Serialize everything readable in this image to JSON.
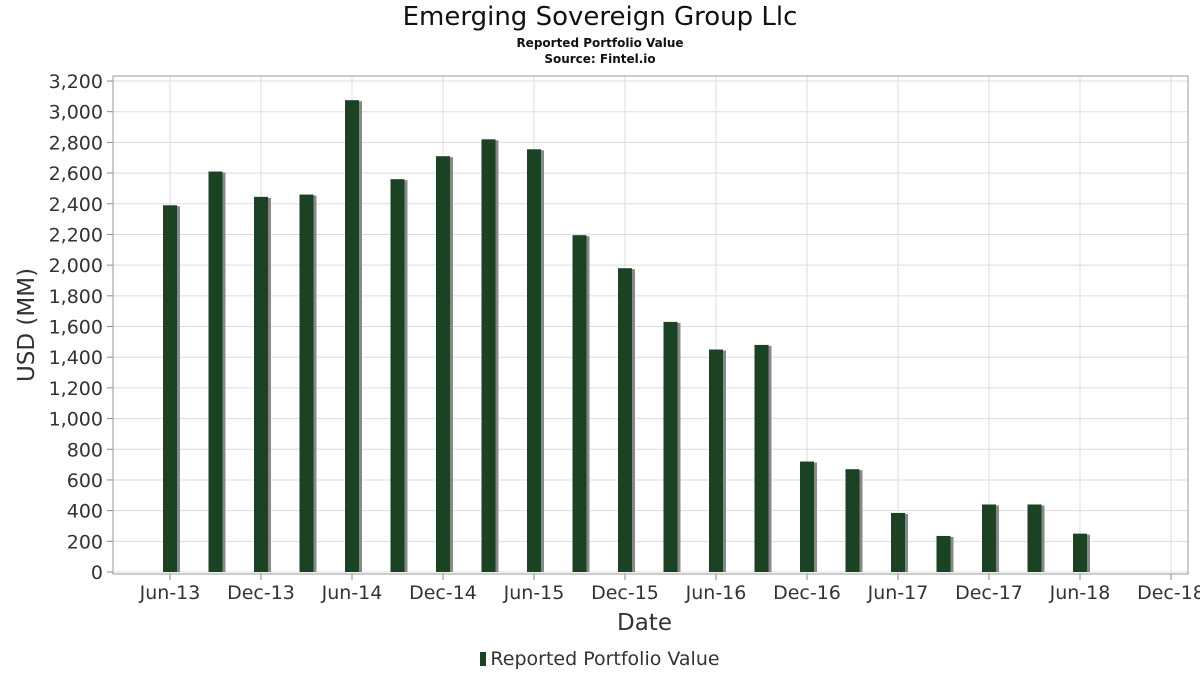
{
  "chart_data": {
    "type": "bar",
    "title": "Emerging Sovereign Group Llc",
    "subtitle_lines": [
      "Reported Portfolio Value",
      "Source: Fintel.io"
    ],
    "xlabel": "Date",
    "ylabel": "USD (MM)",
    "ylim": [
      0,
      3200
    ],
    "yticks": [
      0,
      200,
      400,
      600,
      800,
      1000,
      1200,
      1400,
      1600,
      1800,
      2000,
      2200,
      2400,
      2600,
      2800,
      3000,
      3200
    ],
    "ytick_labels": [
      "0",
      "200",
      "400",
      "600",
      "800",
      "1,000",
      "1,200",
      "1,400",
      "1,600",
      "1,800",
      "2,000",
      "2,200",
      "2,400",
      "2,600",
      "2,800",
      "3,000",
      "3,200"
    ],
    "xticks": [
      "Jun-13",
      "Dec-13",
      "Jun-14",
      "Dec-14",
      "Jun-15",
      "Dec-15",
      "Jun-16",
      "Dec-16",
      "Jun-17",
      "Dec-17",
      "Jun-18",
      "Dec-18"
    ],
    "grid": true,
    "legend_position": "bottom",
    "series": [
      {
        "name": "Reported Portfolio Value",
        "color": "#1a4223",
        "x": [
          "2013-06-30",
          "2013-09-30",
          "2013-12-31",
          "2014-03-31",
          "2014-06-30",
          "2014-09-30",
          "2014-12-31",
          "2015-03-31",
          "2015-06-30",
          "2015-09-30",
          "2015-12-31",
          "2016-03-31",
          "2016-06-30",
          "2016-09-30",
          "2016-12-31",
          "2017-03-31",
          "2017-06-30",
          "2017-09-30",
          "2017-12-31",
          "2018-03-31",
          "2018-06-30"
        ],
        "values": [
          2390,
          2610,
          2445,
          2460,
          3075,
          2560,
          2710,
          2820,
          2755,
          2195,
          1980,
          1630,
          1450,
          1480,
          720,
          670,
          385,
          235,
          440,
          440,
          250
        ]
      }
    ]
  }
}
